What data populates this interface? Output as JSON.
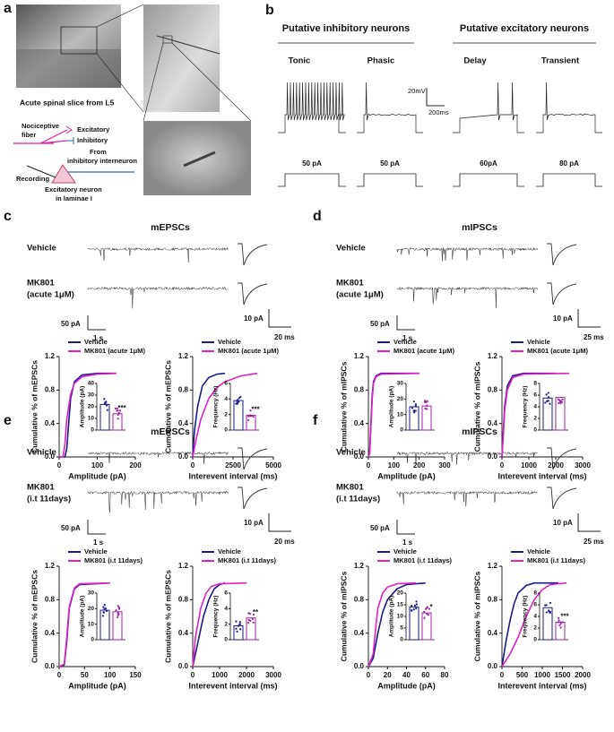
{
  "figure": {
    "panel_a": {
      "letter": "a",
      "slice_caption": "Acute spinal slice from L5",
      "labels": [
        "Nociceptive",
        "fiber",
        "Excitatory",
        "Inhibitory",
        "From",
        "inhibitory interneuron",
        "Recording",
        "Excitatory neuron",
        "in laminae I"
      ]
    },
    "panel_b": {
      "letter": "b",
      "groups": [
        {
          "title": "Putative inhibitory neurons",
          "types": [
            "Tonic",
            "Phasic"
          ],
          "currents": [
            "50 pA",
            "50 pA"
          ]
        },
        {
          "title": "Putative excitatory neurons",
          "types": [
            "Delay",
            "Transient"
          ],
          "currents": [
            "60pA",
            "80 pA"
          ]
        }
      ],
      "scale_v": "20mV",
      "scale_t": "200ms"
    },
    "trace_panels": [
      {
        "letter": "c",
        "title": "mEPSCs",
        "labels": [
          [
            "Vehicle"
          ],
          [
            "MK801",
            "(acute 1μM)"
          ]
        ],
        "scale": [
          "50 pA",
          "1 s",
          "10 pA",
          "20 ms"
        ]
      },
      {
        "letter": "d",
        "title": "mIPSCs",
        "labels": [
          [
            "Vehicle"
          ],
          [
            "MK801",
            "(acute 1μM)"
          ]
        ],
        "scale": [
          "50 pA",
          "1 s",
          "10 pA",
          "25 ms"
        ]
      },
      {
        "letter": "e",
        "title": "mEPSCs",
        "labels": [
          [
            "Vehicle"
          ],
          [
            "MK801",
            "(i.t 11days)"
          ]
        ],
        "scale": [
          "50 pA",
          "1 s",
          "10 pA",
          "20 ms"
        ]
      },
      {
        "letter": "f",
        "title": "mIPSCs",
        "labels": [
          [
            "Vehicle"
          ],
          [
            "MK801",
            "(i.t 11days)"
          ]
        ],
        "scale": [
          "50 pA",
          "1 s",
          "10 pA",
          "25 ms"
        ]
      }
    ]
  },
  "chart_data": [
    {
      "type": "line",
      "ylabel": "Cumulative % of mEPSCs",
      "xlabel": "Amplitude (pA)",
      "xlim": [
        0,
        200
      ],
      "xticks": [
        0,
        100,
        200
      ],
      "ylim": [
        0,
        1.2
      ],
      "yticks": [
        {
          "value": 0,
          "label": "0.0"
        },
        {
          "value": 0.4,
          "label": "0.4"
        },
        {
          "value": 0.8,
          "label": "0.8"
        },
        {
          "value": 1.2,
          "label": "1.2"
        }
      ],
      "series": [
        {
          "name": "Vehicle",
          "color": "#1a1a8c",
          "x": [
            0,
            15,
            20,
            25,
            30,
            40,
            60,
            100,
            150
          ],
          "values": [
            0,
            0,
            0.1,
            0.4,
            0.7,
            0.9,
            0.98,
            1,
            1
          ]
        },
        {
          "name": "MK801 (acute 1μM)",
          "color": "#e020c8",
          "x": [
            0,
            10,
            15,
            20,
            30,
            40,
            60,
            100,
            150
          ],
          "values": [
            0,
            0,
            0.15,
            0.45,
            0.75,
            0.88,
            0.96,
            0.99,
            1
          ]
        }
      ],
      "inset": {
        "type": "bar",
        "ylabel": "Amplitude (pA)",
        "ylim": [
          0,
          40
        ],
        "yticks": [
          0,
          10,
          20,
          30,
          40
        ],
        "values": [
          22,
          14
        ],
        "colors": [
          "#1a1a8c",
          "#a020a8"
        ],
        "annotation": "***"
      }
    },
    {
      "type": "line",
      "ylabel": "Cumulative % of mEPSCs",
      "xlabel": "Interevent interval (ms)",
      "xlim": [
        0,
        5000
      ],
      "xticks": [
        0,
        2500,
        5000
      ],
      "ylim": [
        0,
        1.2
      ],
      "yticks": [
        {
          "value": 0,
          "label": "0.0"
        },
        {
          "value": 0.4,
          "label": "0.4"
        },
        {
          "value": 0.8,
          "label": "0.8"
        },
        {
          "value": 1.2,
          "label": "1.2"
        }
      ],
      "series": [
        {
          "name": "Vehicle",
          "color": "#1a1a8c",
          "x": [
            0,
            100,
            300,
            600,
            1000,
            1500,
            2000
          ],
          "values": [
            0,
            0.3,
            0.6,
            0.85,
            0.95,
            0.99,
            1
          ]
        },
        {
          "name": "MK801 (acute 1μM)",
          "color": "#e020c8",
          "x": [
            0,
            200,
            500,
            1000,
            1500,
            2000,
            3000,
            4000
          ],
          "values": [
            0,
            0.2,
            0.45,
            0.7,
            0.83,
            0.9,
            0.97,
            1
          ]
        }
      ],
      "inset": {
        "type": "bar",
        "ylabel": "Frequency (Hz)",
        "ylim": [
          0,
          6
        ],
        "yticks": [
          0,
          2,
          4,
          6
        ],
        "values": [
          3.8,
          1.9
        ],
        "colors": [
          "#1a1a8c",
          "#a020a8"
        ],
        "annotation": "***"
      }
    },
    {
      "type": "line",
      "ylabel": "Cumulative % of mIPSCs",
      "xlabel": "Amplitude (pA)",
      "xlim": [
        0,
        300
      ],
      "xticks": [
        0,
        100,
        200,
        300
      ],
      "ylim": [
        0,
        1.2
      ],
      "yticks": [
        {
          "value": 0,
          "label": "0.0"
        },
        {
          "value": 0.4,
          "label": "0.4"
        },
        {
          "value": 0.8,
          "label": "0.8"
        },
        {
          "value": 1.2,
          "label": "1.2"
        }
      ],
      "series": [
        {
          "name": "Vehicle",
          "color": "#1a1a8c",
          "x": [
            0,
            5,
            10,
            15,
            20,
            30,
            50,
            200
          ],
          "values": [
            0,
            0.05,
            0.4,
            0.75,
            0.9,
            0.97,
            1,
            1
          ]
        },
        {
          "name": "MK801 (acute 1μM)",
          "color": "#e020c8",
          "x": [
            0,
            5,
            10,
            15,
            20,
            30,
            50,
            200
          ],
          "values": [
            0,
            0.04,
            0.35,
            0.7,
            0.88,
            0.96,
            0.99,
            1
          ]
        }
      ],
      "inset": {
        "type": "bar",
        "ylabel": "Amplitude (pA)",
        "ylim": [
          0,
          30
        ],
        "yticks": [
          0,
          10,
          20,
          30
        ],
        "values": [
          15,
          15.5
        ],
        "colors": [
          "#1a1a8c",
          "#a020a8"
        ]
      }
    },
    {
      "type": "line",
      "ylabel": "Cumulative % of mIPSCs",
      "xlabel": "Interevent interval (ms)",
      "xlim": [
        0,
        3000
      ],
      "xticks": [
        0,
        1000,
        2000,
        3000
      ],
      "ylim": [
        0,
        1.2
      ],
      "yticks": [
        {
          "value": 0,
          "label": "0.0"
        },
        {
          "value": 0.4,
          "label": "0.4"
        },
        {
          "value": 0.8,
          "label": "0.8"
        },
        {
          "value": 1.2,
          "label": "1.2"
        }
      ],
      "series": [
        {
          "name": "Vehicle",
          "color": "#1a1a8c",
          "x": [
            0,
            50,
            100,
            200,
            400,
            800,
            2000
          ],
          "values": [
            0,
            0.3,
            0.6,
            0.85,
            0.97,
            1,
            1
          ]
        },
        {
          "name": "MK801 (acute 1μM)",
          "color": "#e020c8",
          "x": [
            0,
            50,
            100,
            200,
            400,
            800,
            2500
          ],
          "values": [
            0,
            0.25,
            0.55,
            0.8,
            0.95,
            0.99,
            1
          ]
        }
      ],
      "inset": {
        "type": "bar",
        "ylabel": "Frequency (Hz)",
        "ylim": [
          0,
          8
        ],
        "yticks": [
          0,
          2,
          4,
          6,
          8
        ],
        "values": [
          5.5,
          5.6
        ],
        "colors": [
          "#1a1a8c",
          "#a020a8"
        ]
      }
    },
    {
      "type": "line",
      "ylabel": "Cumulative % of mEPSCs",
      "xlabel": "Amplitude (pA)",
      "xlim": [
        0,
        150
      ],
      "xticks": [
        0,
        50,
        100,
        150
      ],
      "ylim": [
        0,
        1.2
      ],
      "yticks": [
        {
          "value": 0,
          "label": "0.0"
        },
        {
          "value": 0.4,
          "label": "0.4"
        },
        {
          "value": 0.8,
          "label": "0.8"
        },
        {
          "value": 1.2,
          "label": "1.2"
        }
      ],
      "series": [
        {
          "name": "Vehicle",
          "color": "#1a1a8c",
          "x": [
            0,
            10,
            15,
            20,
            30,
            40,
            100
          ],
          "values": [
            0,
            0.02,
            0.3,
            0.7,
            0.93,
            0.98,
            1
          ]
        },
        {
          "name": "MK801 (i.t 11days)",
          "color": "#e020c8",
          "x": [
            0,
            10,
            15,
            20,
            30,
            40,
            100
          ],
          "values": [
            0,
            0.03,
            0.35,
            0.72,
            0.94,
            0.99,
            1
          ]
        }
      ],
      "inset": {
        "type": "bar",
        "ylabel": "Amplitude (pA)",
        "ylim": [
          0,
          30
        ],
        "yticks": [
          0,
          10,
          20,
          30
        ],
        "values": [
          19,
          18
        ],
        "colors": [
          "#1a1a8c",
          "#a020a8"
        ]
      }
    },
    {
      "type": "line",
      "ylabel": "Cumulative % of mEPSCs",
      "xlabel": "Interevent interval (ms)",
      "xlim": [
        0,
        3000
      ],
      "xticks": [
        0,
        1000,
        2000,
        3000
      ],
      "ylim": [
        0,
        1.2
      ],
      "yticks": [
        {
          "value": 0,
          "label": "0.0"
        },
        {
          "value": 0.4,
          "label": "0.4"
        },
        {
          "value": 0.8,
          "label": "0.8"
        },
        {
          "value": 1.2,
          "label": "1.2"
        }
      ],
      "series": [
        {
          "name": "Vehicle",
          "color": "#1a1a8c",
          "x": [
            0,
            200,
            400,
            600,
            800,
            1000,
            1200
          ],
          "values": [
            0,
            0.3,
            0.6,
            0.8,
            0.93,
            0.98,
            1
          ]
        },
        {
          "name": "MK801 (i.t 11days)",
          "color": "#e020c8",
          "x": [
            0,
            100,
            300,
            500,
            700,
            1000,
            2000
          ],
          "values": [
            0,
            0.35,
            0.7,
            0.88,
            0.96,
            0.99,
            1
          ]
        }
      ],
      "inset": {
        "type": "bar",
        "ylabel": "Frequency (Hz)",
        "ylim": [
          0,
          6
        ],
        "yticks": [
          0,
          2,
          4,
          6
        ],
        "values": [
          1.8,
          2.8
        ],
        "colors": [
          "#1a1a8c",
          "#a020a8"
        ],
        "annotation": "**"
      }
    },
    {
      "type": "line",
      "ylabel": "Cumulative % of mIPSCs",
      "xlabel": "Amplitude (pA)",
      "xlim": [
        0,
        80
      ],
      "xticks": [
        0,
        20,
        40,
        60,
        80
      ],
      "ylim": [
        0,
        1.2
      ],
      "yticks": [
        {
          "value": 0,
          "label": "0.0"
        },
        {
          "value": 0.4,
          "label": "0.4"
        },
        {
          "value": 0.8,
          "label": "0.8"
        },
        {
          "value": 1.2,
          "label": "1.2"
        }
      ],
      "series": [
        {
          "name": "Vehicle",
          "color": "#1a1a8c",
          "x": [
            0,
            5,
            10,
            15,
            20,
            30,
            40,
            60
          ],
          "values": [
            0,
            0.1,
            0.4,
            0.65,
            0.8,
            0.93,
            0.98,
            1
          ]
        },
        {
          "name": "MK801 (i.t 11days)",
          "color": "#e020c8",
          "x": [
            0,
            5,
            8,
            10,
            15,
            20,
            30,
            50
          ],
          "values": [
            0,
            0.15,
            0.5,
            0.7,
            0.88,
            0.95,
            0.99,
            1
          ]
        }
      ],
      "inset": {
        "type": "bar",
        "ylabel": "Amplitude (pA)",
        "ylim": [
          0,
          20
        ],
        "yticks": [
          0,
          5,
          10,
          15,
          20
        ],
        "values": [
          14,
          11.5
        ],
        "colors": [
          "#1a1a8c",
          "#a020a8"
        ],
        "annotation": "*"
      }
    },
    {
      "type": "line",
      "ylabel": "Cumulative % of mIPSCs",
      "xlabel": "Interevent interval (ms)",
      "xlim": [
        0,
        2000
      ],
      "xticks": [
        0,
        500,
        1000,
        1500,
        2000
      ],
      "ylim": [
        0,
        1.2
      ],
      "yticks": [
        {
          "value": 0,
          "label": "0.0"
        },
        {
          "value": 0.4,
          "label": "0.4"
        },
        {
          "value": 0.8,
          "label": "0.8"
        },
        {
          "value": 1.2,
          "label": "1.2"
        }
      ],
      "series": [
        {
          "name": "Vehicle",
          "color": "#1a1a8c",
          "x": [
            0,
            100,
            200,
            300,
            400,
            600,
            800,
            1400
          ],
          "values": [
            0,
            0.3,
            0.55,
            0.75,
            0.88,
            0.97,
            1,
            1
          ]
        },
        {
          "name": "MK801 (i.t 11days)",
          "color": "#e020c8",
          "x": [
            0,
            200,
            400,
            600,
            800,
            1000,
            1200,
            1600
          ],
          "values": [
            0,
            0.15,
            0.35,
            0.6,
            0.8,
            0.92,
            0.98,
            1
          ]
        }
      ],
      "inset": {
        "type": "bar",
        "ylabel": "Frequency (Hz)",
        "ylim": [
          0,
          8
        ],
        "yticks": [
          0,
          2,
          4,
          6,
          8
        ],
        "values": [
          5.5,
          3.0
        ],
        "colors": [
          "#1a1a8c",
          "#a020a8"
        ],
        "annotation": "***"
      }
    }
  ]
}
